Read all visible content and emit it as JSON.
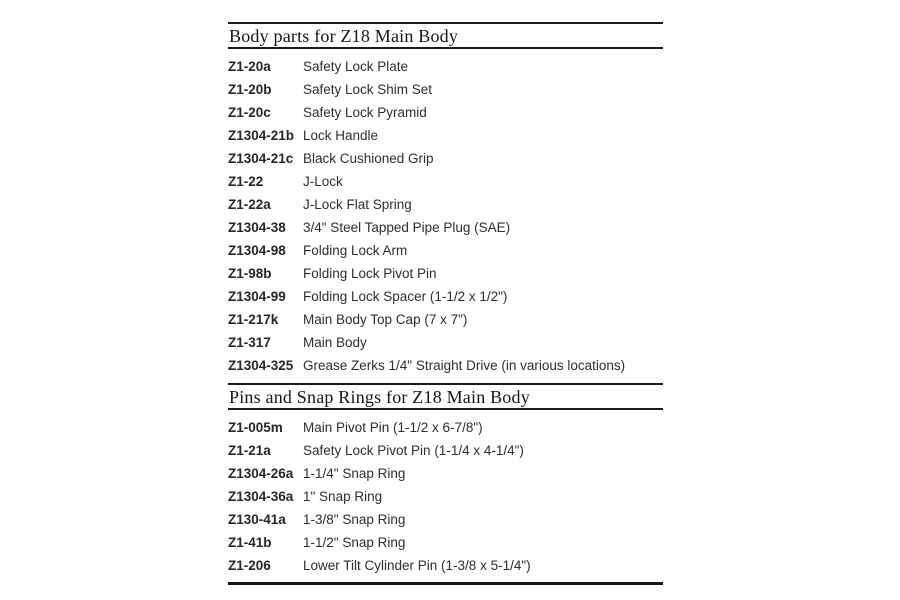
{
  "page": {
    "background": "#ffffff",
    "text_color": "#2e2e2e",
    "rule_color": "#1b1b1b"
  },
  "sections": [
    {
      "title": "Body parts for Z18 Main Body",
      "rows": [
        {
          "part": "Z1-20a",
          "desc": "Safety Lock Plate"
        },
        {
          "part": "Z1-20b",
          "desc": "Safety Lock Shim Set"
        },
        {
          "part": "Z1-20c",
          "desc": "Safety Lock Pyramid"
        },
        {
          "part": "Z1304-21b",
          "desc": "Lock Handle"
        },
        {
          "part": "Z1304-21c",
          "desc": "Black Cushioned Grip"
        },
        {
          "part": "Z1-22",
          "desc": "J-Lock"
        },
        {
          "part": "Z1-22a",
          "desc": "J-Lock Flat Spring"
        },
        {
          "part": "Z1304-38",
          "desc": "3/4\" Steel Tapped Pipe Plug (SAE)"
        },
        {
          "part": "Z1304-98",
          "desc": "Folding Lock Arm"
        },
        {
          "part": "Z1-98b",
          "desc": "Folding Lock Pivot Pin"
        },
        {
          "part": "Z1304-99",
          "desc": "Folding Lock Spacer (1-1/2 x 1/2\")"
        },
        {
          "part": "Z1-217k",
          "desc": "Main Body Top Cap (7 x 7\")"
        },
        {
          "part": "Z1-317",
          "desc": "Main Body"
        },
        {
          "part": "Z1304-325",
          "desc": "Grease Zerks 1/4\" Straight Drive (in various locations)"
        }
      ]
    },
    {
      "title": "Pins and Snap Rings for Z18 Main Body",
      "rows": [
        {
          "part": "Z1-005m",
          "desc": "Main Pivot Pin (1-1/2 x 6-7/8\")"
        },
        {
          "part": "Z1-21a",
          "desc": "Safety Lock Pivot Pin (1-1/4 x 4-1/4\")"
        },
        {
          "part": "Z1304-26a",
          "desc": "1-1/4\" Snap Ring"
        },
        {
          "part": "Z1304-36a",
          "desc": "1\" Snap Ring"
        },
        {
          "part": "Z130-41a",
          "desc": "1-3/8\" Snap Ring"
        },
        {
          "part": "Z1-41b",
          "desc": "1-1/2\" Snap Ring"
        },
        {
          "part": "Z1-206",
          "desc": "Lower Tilt Cylinder Pin (1-3/8 x 5-1/4\")"
        }
      ]
    }
  ]
}
